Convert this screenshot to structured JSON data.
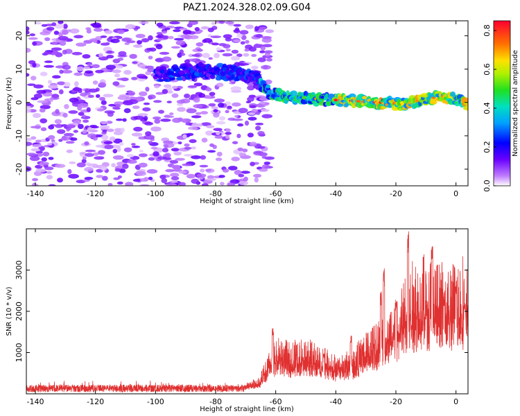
{
  "title": "PAZ1.2024.328.02.09.G04",
  "colors": {
    "snr_line": "#e03030"
  },
  "chart_data": [
    {
      "type": "heatmap",
      "xlabel": "Height of straight line (km)",
      "ylabel": "Frequency (Hz)",
      "xlim": [
        -143,
        4
      ],
      "ylim": [
        -25,
        24.5
      ],
      "x_ticks": [
        -140,
        -120,
        -100,
        -80,
        -60,
        -40,
        -20,
        0
      ],
      "y_ticks": [
        -20,
        -10,
        0,
        10,
        20
      ],
      "colorbar": {
        "label": "Normalized spectral amplitude",
        "range": [
          0,
          0.85
        ],
        "ticks": [
          0.0,
          0.2,
          0.4,
          0.6,
          0.8
        ]
      },
      "signal_band": {
        "description_free": true,
        "centerline": [
          [
            -100,
            8
          ],
          [
            -85,
            9.5
          ],
          [
            -75,
            9
          ],
          [
            -68,
            8
          ],
          [
            -62,
            3
          ],
          [
            -55,
            1.5
          ],
          [
            -45,
            1
          ],
          [
            -35,
            0.5
          ],
          [
            -25,
            0
          ],
          [
            -18,
            -0.5
          ],
          [
            -10,
            1
          ],
          [
            -5,
            2
          ],
          [
            0,
            1
          ],
          [
            4,
            -1
          ]
        ],
        "noise_region_end_km": -65
      }
    },
    {
      "type": "line",
      "xlabel": "Height of straight line (km)",
      "ylabel": "SNR (10 * v/v)",
      "xlim": [
        -143,
        4
      ],
      "ylim": [
        0,
        4000
      ],
      "x_ticks": [
        -140,
        -120,
        -100,
        -80,
        -60,
        -40,
        -20,
        0
      ],
      "y_ticks": [
        1000,
        2000,
        3000
      ],
      "series": [
        {
          "envelope": [
            [
              -143,
              120
            ],
            [
              -100,
              120
            ],
            [
              -70,
              150
            ],
            [
              -65,
              250
            ],
            [
              -62,
              500
            ],
            [
              -60,
              650
            ],
            [
              -55,
              600
            ],
            [
              -50,
              650
            ],
            [
              -45,
              550
            ],
            [
              -40,
              450
            ],
            [
              -35,
              500
            ],
            [
              -30,
              700
            ],
            [
              -25,
              900
            ],
            [
              -20,
              1100
            ],
            [
              -15,
              1500
            ],
            [
              -10,
              1600
            ],
            [
              -5,
              1500
            ],
            [
              0,
              1500
            ],
            [
              4,
              1700
            ]
          ],
          "peaks": [
            [
              -61,
              1600
            ],
            [
              -44,
              1000
            ],
            [
              -35,
              1450
            ],
            [
              -25,
              2500
            ],
            [
              -24,
              3050
            ],
            [
              -20,
              2300
            ],
            [
              -16,
              3950
            ],
            [
              -8,
              3650
            ],
            [
              -4,
              2500
            ],
            [
              0,
              2800
            ],
            [
              3,
              2200
            ]
          ]
        }
      ]
    }
  ]
}
